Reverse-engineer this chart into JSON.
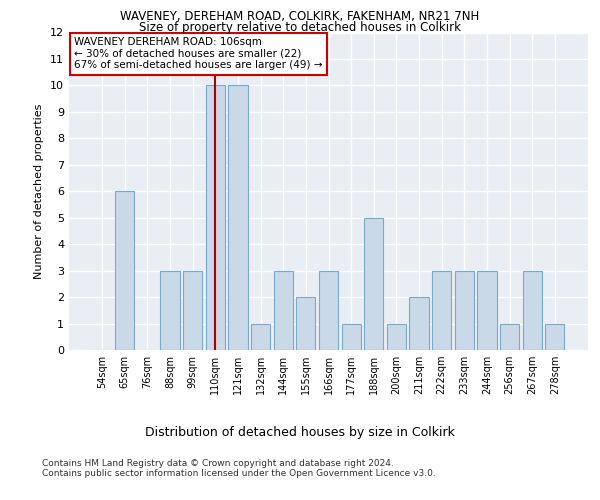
{
  "title1": "WAVENEY, DEREHAM ROAD, COLKIRK, FAKENHAM, NR21 7NH",
  "title2": "Size of property relative to detached houses in Colkirk",
  "xlabel": "Distribution of detached houses by size in Colkirk",
  "ylabel": "Number of detached properties",
  "categories": [
    "54sqm",
    "65sqm",
    "76sqm",
    "88sqm",
    "99sqm",
    "110sqm",
    "121sqm",
    "132sqm",
    "144sqm",
    "155sqm",
    "166sqm",
    "177sqm",
    "188sqm",
    "200sqm",
    "211sqm",
    "222sqm",
    "233sqm",
    "244sqm",
    "256sqm",
    "267sqm",
    "278sqm"
  ],
  "values": [
    0,
    6,
    0,
    3,
    3,
    10,
    10,
    1,
    3,
    2,
    3,
    1,
    5,
    1,
    2,
    3,
    3,
    3,
    1,
    3,
    1
  ],
  "bar_color": "#c9d9e8",
  "bar_edge_color": "#7aaac8",
  "reference_line_index": 5,
  "reference_line_color": "#aa0000",
  "annotation_line1": "WAVENEY DEREHAM ROAD: 106sqm",
  "annotation_line2": "← 30% of detached houses are smaller (22)",
  "annotation_line3": "67% of semi-detached houses are larger (49) →",
  "annotation_box_color": "#ffffff",
  "annotation_box_edge_color": "#cc0000",
  "ylim": [
    0,
    12
  ],
  "yticks": [
    0,
    1,
    2,
    3,
    4,
    5,
    6,
    7,
    8,
    9,
    10,
    11,
    12
  ],
  "footer1": "Contains HM Land Registry data © Crown copyright and database right 2024.",
  "footer2": "Contains public sector information licensed under the Open Government Licence v3.0.",
  "plot_bg_color": "#e8eef4",
  "fig_bg_color": "#ffffff"
}
